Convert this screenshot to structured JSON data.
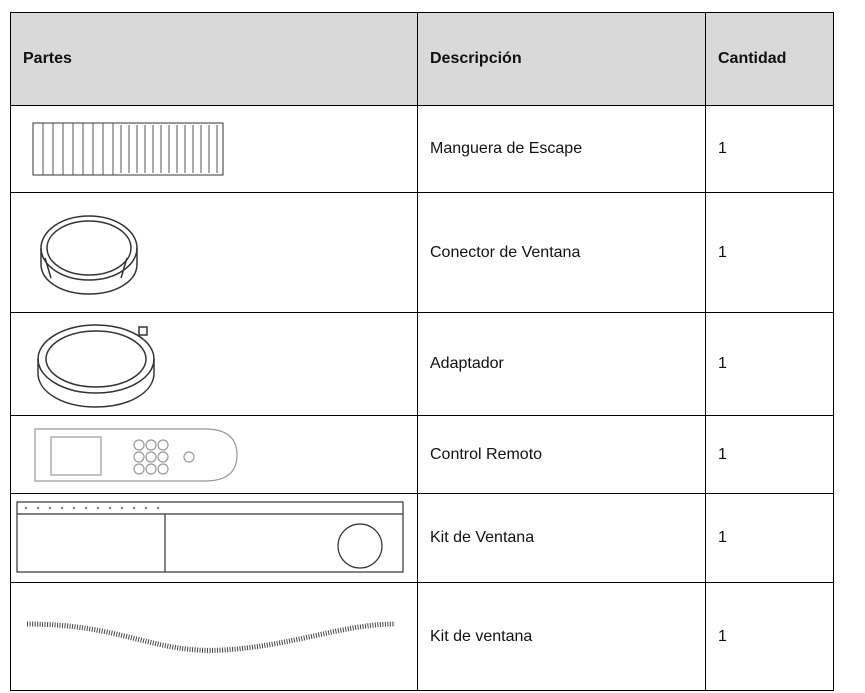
{
  "table": {
    "header": [
      "Partes",
      "Descripción",
      "Cantidad"
    ],
    "rows": [
      {
        "description": "Manguera de Escape",
        "quantity": 1
      },
      {
        "description": "Conector de Ventana",
        "quantity": 1
      },
      {
        "description": "Adaptador",
        "quantity": 1
      },
      {
        "description": "Control Remoto",
        "quantity": 1
      },
      {
        "description": "Kit de Ventana",
        "quantity": 1
      },
      {
        "description": "Kit de ventana",
        "quantity": 1
      }
    ]
  }
}
